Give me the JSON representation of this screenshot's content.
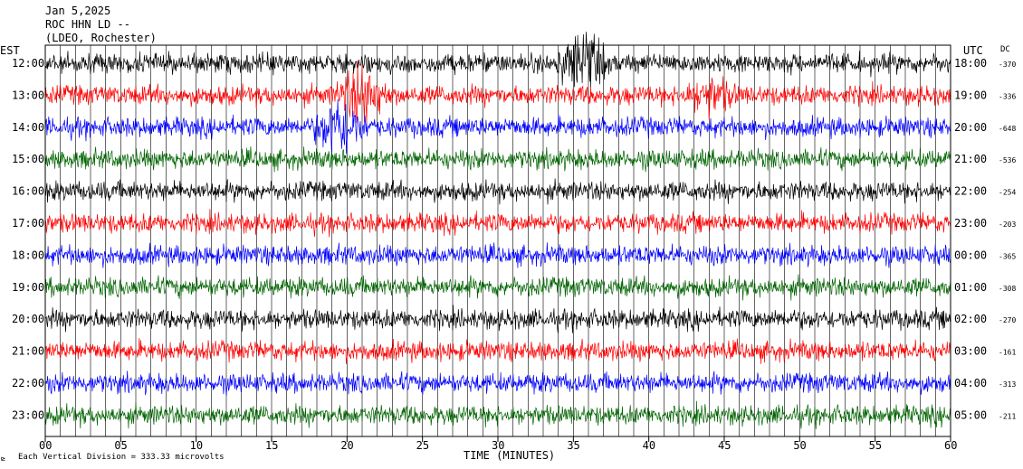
{
  "header": {
    "date": "Jan 5,2025",
    "station": "ROC HHN LD --",
    "location": "(LDEO, Rochester)"
  },
  "left_axis_label": "EST",
  "right_axis_label": "UTC",
  "dc_label": "DC",
  "x_axis_title": "TIME (MINUTES)",
  "footer_note": "Each Vertical Division =  333.33 microvolts",
  "corner_mark": "⊵",
  "colors": {
    "cycle": [
      "#000000",
      "#ff0000",
      "#0000ff",
      "#006400"
    ],
    "frame": "#000000",
    "grid": "#000000"
  },
  "chart_data": {
    "type": "line",
    "title": "Jan 5,2025",
    "xlabel": "TIME (MINUTES)",
    "ylabel": "",
    "xlim": [
      0,
      60
    ],
    "x_ticks": [
      "00",
      "05",
      "10",
      "15",
      "20",
      "25",
      "30",
      "35",
      "40",
      "45",
      "50",
      "55",
      "60"
    ],
    "grid": "vertical, every minute",
    "rows": [
      {
        "est": "12:00",
        "utc": "18:00",
        "dc": "-370",
        "color": "#000000"
      },
      {
        "est": "13:00",
        "utc": "19:00",
        "dc": "-336",
        "color": "#ff0000"
      },
      {
        "est": "14:00",
        "utc": "20:00",
        "dc": "-648",
        "color": "#0000ff"
      },
      {
        "est": "15:00",
        "utc": "21:00",
        "dc": "-536",
        "color": "#006400"
      },
      {
        "est": "16:00",
        "utc": "22:00",
        "dc": "-254",
        "color": "#000000"
      },
      {
        "est": "17:00",
        "utc": "23:00",
        "dc": "-203",
        "color": "#ff0000"
      },
      {
        "est": "18:00",
        "utc": "00:00",
        "dc": "-365",
        "color": "#0000ff"
      },
      {
        "est": "19:00",
        "utc": "01:00",
        "dc": "-308",
        "color": "#006400"
      },
      {
        "est": "20:00",
        "utc": "02:00",
        "dc": "-270",
        "color": "#000000"
      },
      {
        "est": "21:00",
        "utc": "03:00",
        "dc": "-161",
        "color": "#ff0000"
      },
      {
        "est": "22:00",
        "utc": "04:00",
        "dc": "-313",
        "color": "#0000ff"
      },
      {
        "est": "23:00",
        "utc": "05:00",
        "dc": "-211",
        "color": "#006400"
      }
    ],
    "events": [
      {
        "row": 0,
        "minute": 35.5,
        "amplitude": "large"
      },
      {
        "row": 1,
        "minute": 21,
        "amplitude": "large"
      },
      {
        "row": 2,
        "minute": 19.5,
        "amplitude": "large"
      },
      {
        "row": 1,
        "minute": 44,
        "amplitude": "medium"
      }
    ]
  }
}
